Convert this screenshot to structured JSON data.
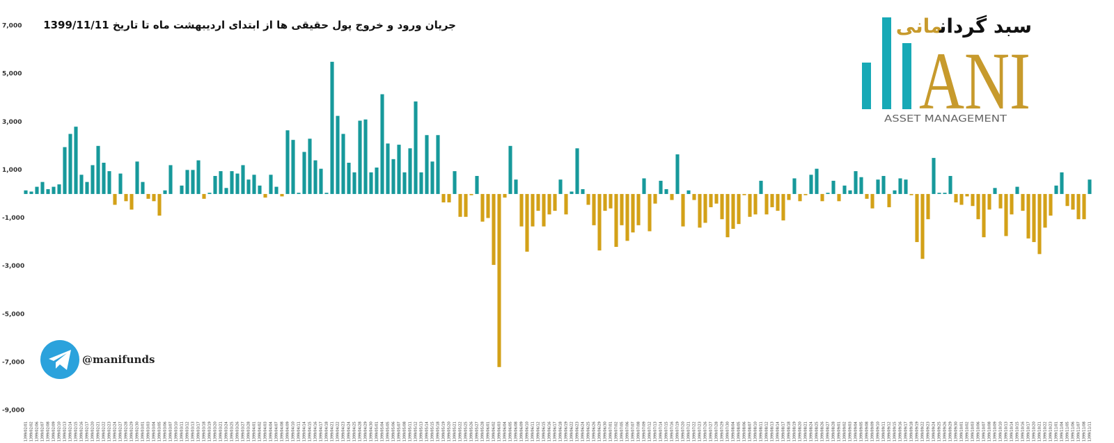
{
  "chart_data": {
    "type": "bar",
    "title": "جریان ورود و خروج پول حقیقی ها از ابتدای اردیبهشت ماه تا تاریخ 1399/11/11",
    "categories": [
      "1399/02/01",
      "1399/02/02",
      "1399/02/06",
      "1399/02/07",
      "1399/02/08",
      "1399/02/09",
      "1399/02/10",
      "1399/02/13",
      "1399/02/14",
      "1399/02/15",
      "1399/02/16",
      "1399/02/17",
      "1399/02/20",
      "1399/02/21",
      "1399/02/22",
      "1399/02/23",
      "1399/02/24",
      "1399/02/27",
      "1399/02/28",
      "1399/02/29",
      "1399/02/30",
      "1399/03/01",
      "1399/03/03",
      "1399/03/04",
      "1399/03/05",
      "1399/03/06",
      "1399/03/07",
      "1399/03/10",
      "1399/03/11",
      "1399/03/12",
      "1399/03/13",
      "1399/03/17",
      "1399/03/18",
      "1399/03/19",
      "1399/03/20",
      "1399/03/21",
      "1399/03/24",
      "1399/03/25",
      "1399/03/26",
      "1399/03/27",
      "1399/03/28",
      "1399/04/01",
      "1399/04/02",
      "1399/04/03",
      "1399/04/04",
      "1399/04/07",
      "1399/04/08",
      "1399/04/09",
      "1399/04/10",
      "1399/04/11",
      "1399/04/14",
      "1399/04/15",
      "1399/04/16",
      "1399/04/17",
      "1399/04/18",
      "1399/04/21",
      "1399/04/22",
      "1399/04/23",
      "1399/04/24",
      "1399/04/25",
      "1399/04/28",
      "1399/04/29",
      "1399/04/30",
      "1399/05/01",
      "1399/05/04",
      "1399/05/05",
      "1399/05/06",
      "1399/05/07",
      "1399/05/08",
      "1399/05/11",
      "1399/05/12",
      "1399/05/13",
      "1399/05/14",
      "1399/05/15",
      "1399/05/18",
      "1399/05/19",
      "1399/05/20",
      "1399/05/21",
      "1399/05/22",
      "1399/05/25",
      "1399/05/26",
      "1399/05/27",
      "1399/05/28",
      "1399/06/01",
      "1399/06/02",
      "1399/06/03",
      "1399/06/04",
      "1399/06/05",
      "1399/06/08",
      "1399/06/09",
      "1399/06/10",
      "1399/06/11",
      "1399/06/12",
      "1399/06/15",
      "1399/06/16",
      "1399/06/17",
      "1399/06/18",
      "1399/06/19",
      "1399/06/22",
      "1399/06/23",
      "1399/06/24",
      "1399/06/25",
      "1399/06/26",
      "1399/06/29",
      "1399/06/30",
      "1399/07/01",
      "1399/07/02",
      "1399/07/05",
      "1399/07/06",
      "1399/07/07",
      "1399/07/08",
      "1399/07/09",
      "1399/07/12",
      "1399/07/13",
      "1399/07/14",
      "1399/07/15",
      "1399/07/16",
      "1399/07/19",
      "1399/07/20",
      "1399/07/21",
      "1399/07/22",
      "1399/07/23",
      "1399/07/26",
      "1399/07/27",
      "1399/07/28",
      "1399/07/29",
      "1399/07/30",
      "1399/08/04",
      "1399/08/05",
      "1399/08/06",
      "1399/08/07",
      "1399/08/10",
      "1399/08/11",
      "1399/08/12",
      "1399/08/13",
      "1399/08/14",
      "1399/08/17",
      "1399/08/18",
      "1399/08/19",
      "1399/08/20",
      "1399/08/21",
      "1399/08/24",
      "1399/08/25",
      "1399/08/26",
      "1399/08/27",
      "1399/08/28",
      "1399/09/01",
      "1399/09/02",
      "1399/09/03",
      "1399/09/04",
      "1399/09/05",
      "1399/09/08",
      "1399/09/09",
      "1399/09/10",
      "1399/09/11",
      "1399/09/12",
      "1399/09/15",
      "1399/09/16",
      "1399/09/17",
      "1399/09/18",
      "1399/09/19",
      "1399/09/22",
      "1399/09/23",
      "1399/09/24",
      "1399/09/25",
      "1399/09/26",
      "1399/09/29",
      "1399/09/30",
      "1399/10/01",
      "1399/10/02",
      "1399/10/03",
      "1399/10/06",
      "1399/10/07",
      "1399/10/08",
      "1399/10/09",
      "1399/10/10",
      "1399/10/13",
      "1399/10/14",
      "1399/10/15",
      "1399/10/16",
      "1399/10/17",
      "1399/10/20",
      "1399/10/21",
      "1399/10/22",
      "1399/10/23",
      "1399/11/01",
      "1399/11/04",
      "1399/11/05",
      "1399/11/06",
      "1399/11/07",
      "1399/11/08",
      "1399/11/11"
    ],
    "values": [
      150,
      100,
      300,
      500,
      200,
      300,
      400,
      1950,
      2500,
      2800,
      800,
      500,
      1200,
      2000,
      1300,
      950,
      -450,
      850,
      -300,
      -650,
      1350,
      500,
      -200,
      -300,
      -900,
      150,
      1200,
      0,
      350,
      1000,
      1000,
      1400,
      -200,
      50,
      750,
      950,
      250,
      950,
      850,
      1200,
      600,
      800,
      350,
      -150,
      800,
      300,
      -100,
      2650,
      2250,
      50,
      1750,
      2300,
      1400,
      1050,
      50,
      5500,
      3250,
      2500,
      1300,
      900,
      3050,
      3100,
      900,
      1100,
      4150,
      2100,
      1450,
      2050,
      900,
      1900,
      3850,
      900,
      2450,
      1350,
      2450,
      -350,
      -350,
      950,
      -950,
      -950,
      -50,
      750,
      -1150,
      -1000,
      -2950,
      -7200,
      -150,
      2000,
      600,
      -1350,
      -2400,
      -1350,
      -700,
      -1350,
      -850,
      -700,
      600,
      -850,
      100,
      1900,
      200,
      -450,
      -1300,
      -2350,
      -700,
      -600,
      -2200,
      -1300,
      -1950,
      -1600,
      -1300,
      650,
      -1550,
      -400,
      550,
      200,
      -250,
      1650,
      -1350,
      150,
      -250,
      -1400,
      -1200,
      -550,
      -400,
      -1050,
      -1800,
      -1450,
      -1250,
      -50,
      -950,
      -850,
      550,
      -850,
      -550,
      -700,
      -1100,
      -250,
      650,
      -300,
      -50,
      800,
      1050,
      -300,
      50,
      550,
      -300,
      350,
      150,
      950,
      700,
      -200,
      -600,
      600,
      750,
      -550,
      150,
      650,
      600,
      -50,
      -2000,
      -2700,
      -1050,
      1500,
      50,
      50,
      750,
      -350,
      -450,
      -100,
      -500,
      -1050,
      -1800,
      -650,
      250,
      -600,
      -1750,
      -850,
      300,
      -700,
      -1850,
      -2000,
      -2500,
      -1400,
      -900,
      350,
      900,
      -500,
      -650,
      -1050,
      -1050,
      600
    ],
    "colors": {
      "positive": "#17999b",
      "negative": "#d3a118"
    },
    "ylim": [
      -9000,
      7000
    ],
    "yticks": [
      {
        "value": 7000,
        "label": "7,000"
      },
      {
        "value": 5000,
        "label": "5,000"
      },
      {
        "value": 3000,
        "label": "3,000"
      },
      {
        "value": 1000,
        "label": "1,000"
      },
      {
        "value": -1000,
        "label": "-1,000"
      },
      {
        "value": -3000,
        "label": "-3,000"
      },
      {
        "value": -5000,
        "label": "-5,000"
      },
      {
        "value": -7000,
        "label": "-7,000"
      },
      {
        "value": -9000,
        "label": "-9,000"
      }
    ],
    "grid": false
  },
  "logo": {
    "name": "سبد گردان",
    "name_accent": "مانی",
    "letters": "ANI",
    "tagline": "ASSET MANAGEMENT"
  },
  "handle": "@manifunds"
}
